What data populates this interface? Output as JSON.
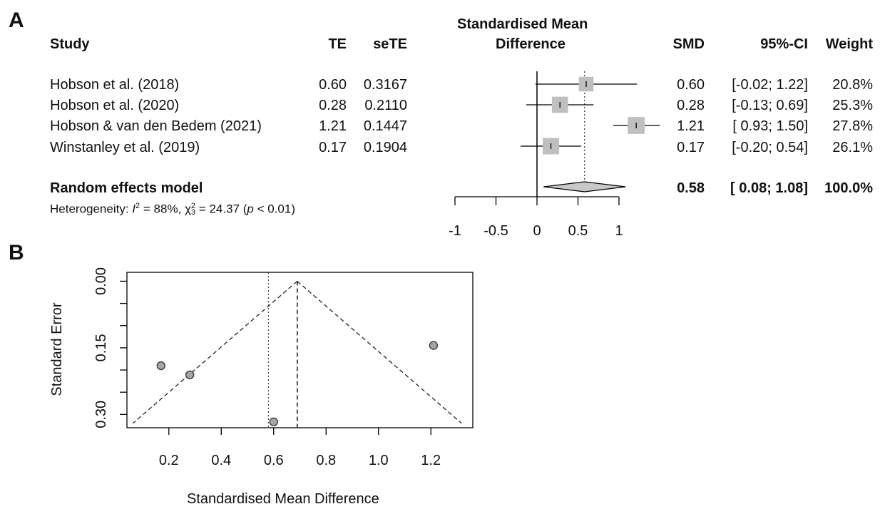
{
  "panel_a": {
    "label": "A",
    "headers": {
      "study": "Study",
      "te": "TE",
      "sete": "seTE",
      "effect_line1": "Standardised Mean",
      "effect_line2": "Difference",
      "smd": "SMD",
      "ci": "95%-CI",
      "weight": "Weight"
    },
    "studies": [
      {
        "study": "Hobson et al. (2018)",
        "te": "0.60",
        "sete": "0.3167",
        "smd": "0.60",
        "ci": "[-0.02; 1.22]",
        "weight": "20.8%"
      },
      {
        "study": "Hobson et al. (2020)",
        "te": "0.28",
        "sete": "0.2110",
        "smd": "0.28",
        "ci": "[-0.13; 0.69]",
        "weight": "25.3%"
      },
      {
        "study": "Hobson & van den Bedem (2021)",
        "te": "1.21",
        "sete": "0.1447",
        "smd": "1.21",
        "ci": "[ 0.93; 1.50]",
        "weight": "27.8%"
      },
      {
        "study": "Winstanley et al. (2019)",
        "te": "0.17",
        "sete": "0.1904",
        "smd": "0.17",
        "ci": "[-0.20; 0.54]",
        "weight": "26.1%"
      }
    ],
    "pooled": {
      "label": "Random effects model",
      "smd": "0.58",
      "ci": "[ 0.08; 1.08]",
      "weight": "100.0%"
    },
    "heterogeneity": {
      "prefix": "Heterogeneity: ",
      "i2": "= 88%, ",
      "chi_value": " = 24.37 (",
      "p_text": " < 0.01)"
    }
  },
  "panel_b": {
    "label": "B",
    "ylabel": "Standard Error",
    "xlabel": "Standardised Mean Difference"
  },
  "chart_data": [
    {
      "type": "forest",
      "xlim": [
        -1,
        1.25
      ],
      "xticks": [
        -1,
        -0.5,
        0,
        0.5,
        1
      ],
      "xtick_labels": [
        "-1",
        "-0.5",
        "0",
        "0.5",
        "1"
      ],
      "points": [
        {
          "est": 0.6,
          "lo": -0.02,
          "hi": 1.22,
          "weight": 20.8
        },
        {
          "est": 0.28,
          "lo": -0.13,
          "hi": 0.69,
          "weight": 25.3
        },
        {
          "est": 1.21,
          "lo": 0.93,
          "hi": 1.5,
          "weight": 27.8
        },
        {
          "est": 0.17,
          "lo": -0.2,
          "hi": 0.54,
          "weight": 26.1
        }
      ],
      "pooled": {
        "est": 0.58,
        "lo": 0.08,
        "hi": 1.08
      },
      "fixed_line": 0.58
    },
    {
      "type": "scatter",
      "subtype": "funnel",
      "xlim": [
        0.04,
        1.36
      ],
      "ylim": [
        0.33,
        -0.02
      ],
      "y_reversed": true,
      "xticks": [
        0.2,
        0.4,
        0.6,
        0.8,
        1.0,
        1.2
      ],
      "xtick_labels": [
        "0.2",
        "0.4",
        "0.6",
        "0.8",
        "1.0",
        "1.2"
      ],
      "yticks": [
        0.0,
        0.15,
        0.3
      ],
      "ytick_labels": [
        "0.00",
        "0.15",
        "0.30"
      ],
      "points": [
        {
          "x": 0.6,
          "y": 0.3167
        },
        {
          "x": 0.28,
          "y": 0.211
        },
        {
          "x": 1.21,
          "y": 0.1447
        },
        {
          "x": 0.17,
          "y": 0.1904
        }
      ],
      "center_line": 0.69,
      "dotted_line": 0.58,
      "funnel_se_max": 0.32,
      "colors": {
        "point_fill": "#a6a6a6",
        "point_stroke": "#333333"
      }
    }
  ]
}
